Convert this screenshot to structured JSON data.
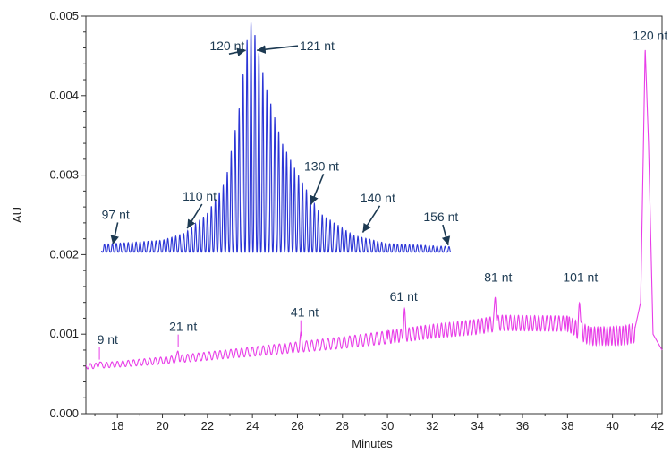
{
  "chart_data": {
    "type": "line",
    "xlabel": "Minutes",
    "ylabel": "AU",
    "xlim": [
      16.6,
      42.2
    ],
    "ylim": [
      0,
      0.005
    ],
    "x_ticks": [
      "18",
      "20",
      "22",
      "24",
      "26",
      "28",
      "30",
      "32",
      "34",
      "36",
      "38",
      "40",
      "42"
    ],
    "y_ticks": [
      "0.000",
      "0.001",
      "0.002",
      "0.003",
      "0.004",
      "0.005"
    ],
    "grid": false,
    "series": [
      {
        "color": "#2b35d6",
        "x_range": [
          17.3,
          32.8
        ],
        "points": [
          [
            17.3,
            0.00211
          ],
          [
            20.0,
            0.00216
          ],
          [
            21.0,
            0.00225
          ],
          [
            22.0,
            0.0025
          ],
          [
            22.8,
            0.0029
          ],
          [
            23.4,
            0.0038
          ],
          [
            23.85,
            0.0049
          ],
          [
            24.0,
            0.0049
          ],
          [
            24.6,
            0.0041
          ],
          [
            25.3,
            0.0034
          ],
          [
            26.0,
            0.003
          ],
          [
            27.0,
            0.0025
          ],
          [
            28.5,
            0.00222
          ],
          [
            30.0,
            0.00212
          ],
          [
            32.8,
            0.00208
          ]
        ]
      },
      {
        "color": "#e83de8",
        "x_range": [
          16.6,
          42.2
        ],
        "points": [
          [
            16.6,
            0.00061
          ],
          [
            18.0,
            0.00064
          ],
          [
            20.0,
            0.00069
          ],
          [
            22.0,
            0.00075
          ],
          [
            24.0,
            0.00081
          ],
          [
            26.0,
            0.00087
          ],
          [
            28.0,
            0.00093
          ],
          [
            30.0,
            0.001
          ],
          [
            32.0,
            0.00108
          ],
          [
            34.0,
            0.00114
          ],
          [
            35.0,
            0.00119
          ],
          [
            38.0,
            0.00118
          ],
          [
            39.0,
            0.00103
          ],
          [
            40.5,
            0.00104
          ],
          [
            41.0,
            0.00108
          ],
          [
            41.25,
            0.0014
          ],
          [
            41.45,
            0.0046
          ],
          [
            41.6,
            0.0034
          ],
          [
            41.8,
            0.001
          ],
          [
            42.2,
            0.0008
          ]
        ]
      }
    ],
    "annotations": [
      {
        "text": "120 nt",
        "x": 22.1,
        "y": 0.00457,
        "arrow": true,
        "arrow_to": [
          23.7,
          0.00457
        ]
      },
      {
        "text": "121 nt",
        "x": 26.1,
        "y": 0.00457,
        "arrow": true,
        "arrow_to": [
          24.2,
          0.00457
        ]
      },
      {
        "text": "97 nt",
        "x": 17.3,
        "y": 0.00245,
        "arrow": true,
        "arrow_to": [
          17.8,
          0.00213
        ]
      },
      {
        "text": "110 nt",
        "x": 20.9,
        "y": 0.00268,
        "arrow": true,
        "arrow_to": [
          21.1,
          0.00233
        ]
      },
      {
        "text": "130 nt",
        "x": 26.3,
        "y": 0.00306,
        "arrow": true,
        "arrow_to": [
          26.6,
          0.00263
        ]
      },
      {
        "text": "140 nt",
        "x": 28.8,
        "y": 0.00266,
        "arrow": true,
        "arrow_to": [
          28.9,
          0.00228
        ]
      },
      {
        "text": "156 nt",
        "x": 31.6,
        "y": 0.00242,
        "arrow": true,
        "arrow_to": [
          32.7,
          0.00212
        ]
      },
      {
        "text": "120 nt",
        "x": 40.9,
        "y": 0.0047,
        "arrow": false
      },
      {
        "text": "9 nt",
        "x": 17.1,
        "y": 0.00088,
        "arrow": false,
        "tick_to": [
          17.2,
          0.00068
        ]
      },
      {
        "text": "21 nt",
        "x": 20.3,
        "y": 0.00104,
        "arrow": false,
        "tick_to": [
          20.7,
          0.00084
        ]
      },
      {
        "text": "41 nt",
        "x": 25.7,
        "y": 0.00122,
        "arrow": false,
        "tick_to": [
          26.15,
          0.00098
        ]
      },
      {
        "text": "61 nt",
        "x": 30.1,
        "y": 0.00142,
        "arrow": false
      },
      {
        "text": "81 nt",
        "x": 34.3,
        "y": 0.00166,
        "arrow": false
      },
      {
        "text": "101 nt",
        "x": 37.8,
        "y": 0.00166,
        "arrow": false
      }
    ]
  }
}
